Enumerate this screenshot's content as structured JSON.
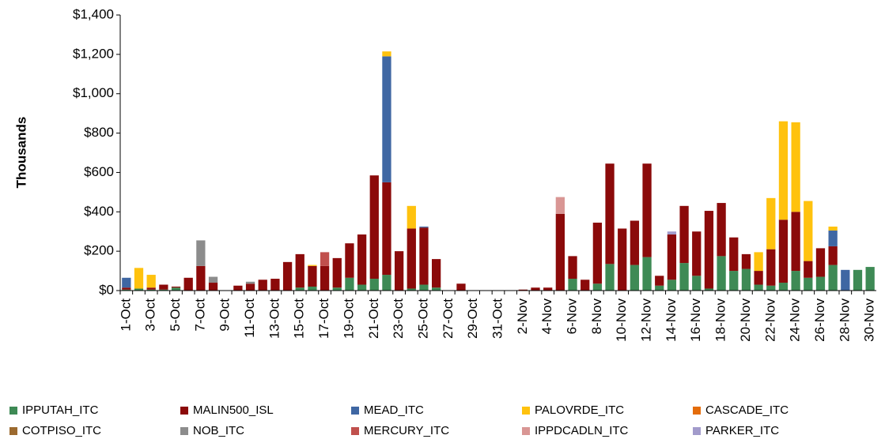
{
  "chart_data": {
    "type": "stacked-bar",
    "y_label": "Thousands",
    "categories": [
      "1-Oct",
      null,
      "3-Oct",
      null,
      "5-Oct",
      null,
      "7-Oct",
      null,
      "9-Oct",
      null,
      "11-Oct",
      null,
      "13-Oct",
      null,
      "15-Oct",
      null,
      "17-Oct",
      null,
      "19-Oct",
      null,
      "21-Oct",
      null,
      "23-Oct",
      null,
      "25-Oct",
      null,
      "27-Oct",
      null,
      "29-Oct",
      null,
      "31-Oct",
      null,
      "2-Nov",
      null,
      "4-Nov",
      null,
      "6-Nov",
      null,
      "8-Nov",
      null,
      "10-Nov",
      null,
      "12-Nov",
      null,
      "14-Nov",
      null,
      "16-Nov",
      null,
      "18-Nov",
      null,
      "20-Nov",
      null,
      "22-Nov",
      null,
      "24-Nov",
      null,
      "26-Nov",
      null,
      "28-Nov",
      null,
      "30-Nov"
    ],
    "series": [
      {
        "name": "IPPUTAH_ITC",
        "color": "#3e8a55",
        "values": [
          5,
          10,
          5,
          5,
          15,
          0,
          0,
          0,
          0,
          0,
          0,
          0,
          0,
          0,
          15,
          20,
          0,
          15,
          65,
          30,
          60,
          80,
          0,
          10,
          30,
          15,
          0,
          0,
          0,
          0,
          0,
          0,
          0,
          0,
          0,
          0,
          60,
          0,
          35,
          135,
          0,
          130,
          170,
          25,
          55,
          140,
          75,
          10,
          175,
          100,
          110,
          30,
          25,
          40,
          100,
          65,
          70,
          130,
          0,
          105,
          120
        ]
      },
      {
        "name": "MALIN500_ISL",
        "color": "#8b0a0a",
        "values": [
          10,
          0,
          10,
          25,
          5,
          65,
          125,
          40,
          0,
          25,
          35,
          55,
          60,
          145,
          170,
          105,
          125,
          150,
          175,
          255,
          525,
          470,
          200,
          305,
          290,
          145,
          0,
          35,
          0,
          0,
          0,
          0,
          5,
          15,
          15,
          390,
          115,
          55,
          310,
          510,
          315,
          225,
          475,
          50,
          230,
          290,
          225,
          395,
          270,
          170,
          75,
          70,
          185,
          320,
          300,
          85,
          145,
          95,
          0,
          0,
          0
        ]
      },
      {
        "name": "MEAD_ITC",
        "color": "#3f67a3",
        "values": [
          50,
          0,
          0,
          0,
          0,
          0,
          0,
          0,
          0,
          0,
          0,
          0,
          0,
          0,
          0,
          0,
          0,
          0,
          0,
          0,
          0,
          640,
          0,
          0,
          5,
          0,
          0,
          0,
          0,
          0,
          0,
          0,
          0,
          0,
          0,
          0,
          0,
          0,
          0,
          0,
          0,
          0,
          0,
          0,
          0,
          0,
          0,
          0,
          0,
          0,
          0,
          0,
          0,
          0,
          0,
          0,
          0,
          80,
          105,
          0,
          0
        ]
      },
      {
        "name": "PALOVRDE_ITC",
        "color": "#ffc20e",
        "values": [
          0,
          105,
          65,
          0,
          0,
          0,
          0,
          0,
          0,
          0,
          0,
          0,
          0,
          0,
          0,
          5,
          0,
          0,
          0,
          0,
          0,
          25,
          0,
          115,
          0,
          0,
          0,
          0,
          0,
          0,
          0,
          0,
          0,
          0,
          0,
          0,
          0,
          0,
          0,
          0,
          0,
          0,
          0,
          0,
          0,
          0,
          0,
          0,
          0,
          0,
          0,
          95,
          260,
          500,
          455,
          305,
          0,
          20,
          0,
          0,
          0
        ]
      },
      {
        "name": "CASCADE_ITC",
        "color": "#e46c0a",
        "values": [
          0,
          0,
          0,
          0,
          0,
          0,
          0,
          0,
          0,
          0,
          0,
          0,
          0,
          0,
          0,
          0,
          0,
          0,
          0,
          0,
          0,
          0,
          0,
          0,
          0,
          0,
          0,
          0,
          0,
          0,
          0,
          0,
          0,
          0,
          0,
          0,
          0,
          0,
          0,
          0,
          0,
          0,
          0,
          0,
          0,
          0,
          0,
          0,
          0,
          0,
          0,
          0,
          0,
          0,
          0,
          0,
          0,
          0,
          0,
          0,
          0
        ]
      },
      {
        "name": "COTPISO_ITC",
        "color": "#9c6a2f",
        "values": [
          0,
          0,
          0,
          0,
          0,
          0,
          0,
          0,
          0,
          0,
          0,
          0,
          0,
          0,
          0,
          0,
          0,
          0,
          0,
          0,
          0,
          0,
          0,
          0,
          0,
          0,
          0,
          0,
          0,
          0,
          0,
          0,
          0,
          0,
          0,
          0,
          0,
          0,
          0,
          0,
          0,
          0,
          0,
          0,
          0,
          0,
          0,
          0,
          0,
          0,
          0,
          0,
          0,
          0,
          0,
          0,
          0,
          0,
          0,
          0,
          0
        ]
      },
      {
        "name": "NOB_ITC",
        "color": "#8c8c8c",
        "values": [
          0,
          0,
          0,
          0,
          0,
          0,
          130,
          30,
          0,
          0,
          10,
          0,
          0,
          0,
          0,
          0,
          0,
          0,
          0,
          0,
          0,
          0,
          0,
          0,
          0,
          0,
          0,
          0,
          0,
          0,
          0,
          0,
          0,
          0,
          0,
          0,
          0,
          0,
          0,
          0,
          0,
          0,
          0,
          0,
          0,
          0,
          0,
          0,
          0,
          0,
          0,
          0,
          0,
          0,
          0,
          0,
          0,
          0,
          0,
          0,
          0
        ]
      },
      {
        "name": "MERCURY_ITC",
        "color": "#c0504d",
        "values": [
          0,
          0,
          0,
          0,
          0,
          0,
          0,
          0,
          0,
          0,
          0,
          0,
          0,
          0,
          0,
          0,
          70,
          0,
          0,
          0,
          0,
          0,
          0,
          0,
          0,
          0,
          0,
          0,
          0,
          0,
          0,
          0,
          0,
          0,
          0,
          0,
          0,
          0,
          0,
          0,
          0,
          0,
          0,
          0,
          0,
          0,
          0,
          0,
          0,
          0,
          0,
          0,
          0,
          0,
          0,
          0,
          0,
          0,
          0,
          0,
          0
        ]
      },
      {
        "name": "IPPDCADLN_ITC",
        "color": "#d99694",
        "values": [
          0,
          0,
          0,
          0,
          0,
          0,
          0,
          0,
          0,
          0,
          0,
          0,
          0,
          0,
          0,
          0,
          0,
          0,
          0,
          0,
          0,
          0,
          0,
          0,
          0,
          0,
          0,
          0,
          0,
          0,
          0,
          0,
          0,
          0,
          0,
          85,
          0,
          0,
          0,
          0,
          0,
          0,
          0,
          0,
          0,
          0,
          0,
          0,
          0,
          0,
          0,
          0,
          0,
          0,
          0,
          0,
          0,
          0,
          0,
          0,
          0
        ]
      },
      {
        "name": "PARKER_ITC",
        "color": "#a29bcb",
        "values": [
          0,
          0,
          0,
          0,
          0,
          0,
          0,
          0,
          0,
          0,
          0,
          0,
          0,
          0,
          0,
          0,
          0,
          0,
          0,
          0,
          0,
          0,
          0,
          0,
          0,
          0,
          0,
          0,
          0,
          0,
          0,
          0,
          0,
          0,
          0,
          0,
          0,
          0,
          0,
          0,
          0,
          0,
          0,
          0,
          15,
          0,
          0,
          0,
          0,
          0,
          0,
          0,
          0,
          0,
          0,
          0,
          0,
          0,
          0,
          0,
          0
        ]
      }
    ],
    "ylim": [
      0,
      1400
    ],
    "yticks": [
      {
        "value": 0,
        "label": "$0"
      },
      {
        "value": 200,
        "label": "$200"
      },
      {
        "value": 400,
        "label": "$400"
      },
      {
        "value": 600,
        "label": "$600"
      },
      {
        "value": 800,
        "label": "$800"
      },
      {
        "value": 1000,
        "label": "$1,000"
      },
      {
        "value": 1200,
        "label": "$1,200"
      },
      {
        "value": 1400,
        "label": "$1,400"
      }
    ],
    "grid": false,
    "legend": "bottom"
  }
}
